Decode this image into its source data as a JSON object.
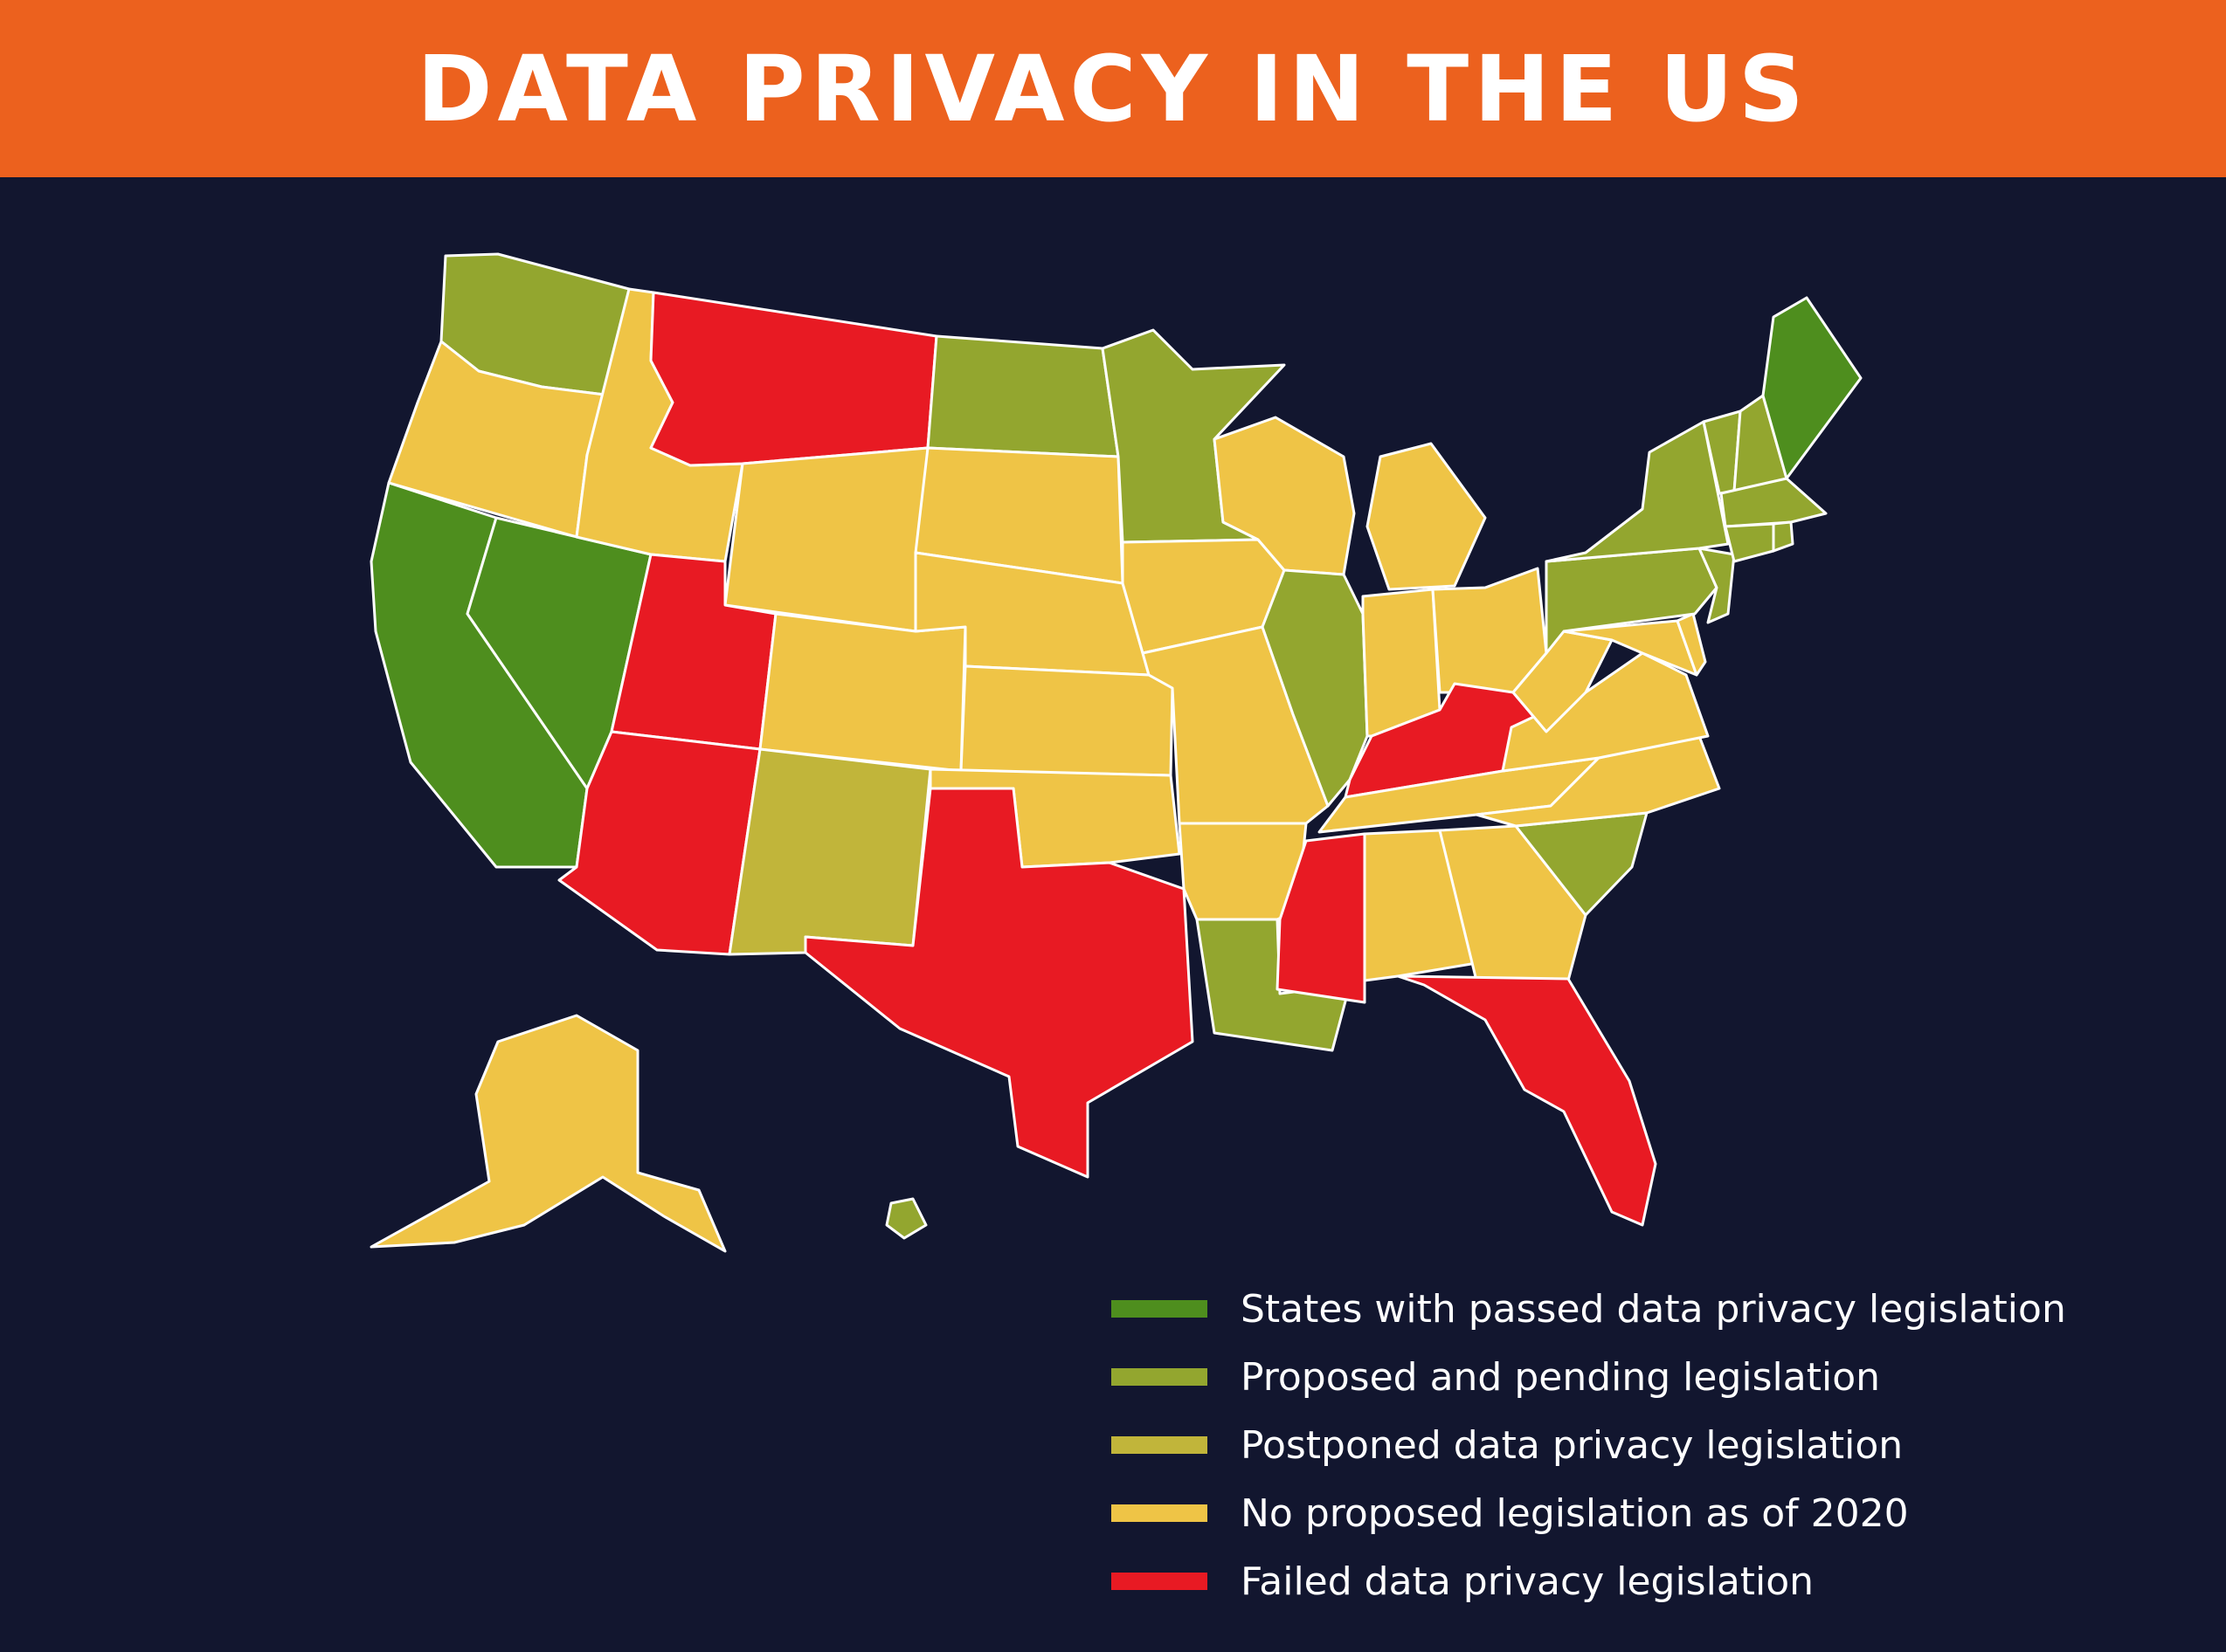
{
  "title": "DATA PRIVACY IN THE US",
  "colors": {
    "header_bg": "#ec611e",
    "background": "#12162f",
    "passed": "#4e8e1e",
    "proposed": "#93a62f",
    "postponed": "#c1b53a",
    "none": "#efc446",
    "failed": "#e81a23"
  },
  "legend": [
    {
      "category": "passed",
      "label": "States with passed data privacy legislation"
    },
    {
      "category": "proposed",
      "label": "Proposed and pending legislation"
    },
    {
      "category": "postponed",
      "label": "Postponed data privacy legislation"
    },
    {
      "category": "none",
      "label": "No proposed legislation as of 2020"
    },
    {
      "category": "failed",
      "label": "Failed data privacy legislation"
    }
  ],
  "states": [
    {
      "name": "Washington",
      "category": "proposed"
    },
    {
      "name": "Oregon",
      "category": "none"
    },
    {
      "name": "California",
      "category": "passed"
    },
    {
      "name": "Nevada",
      "category": "passed"
    },
    {
      "name": "Idaho",
      "category": "none"
    },
    {
      "name": "Montana",
      "category": "failed"
    },
    {
      "name": "Wyoming",
      "category": "none"
    },
    {
      "name": "Utah",
      "category": "failed"
    },
    {
      "name": "Arizona",
      "category": "failed"
    },
    {
      "name": "Colorado",
      "category": "none"
    },
    {
      "name": "New Mexico",
      "category": "postponed"
    },
    {
      "name": "North Dakota",
      "category": "proposed"
    },
    {
      "name": "South Dakota",
      "category": "none"
    },
    {
      "name": "Nebraska",
      "category": "none"
    },
    {
      "name": "Kansas",
      "category": "none"
    },
    {
      "name": "Oklahoma",
      "category": "none"
    },
    {
      "name": "Texas",
      "category": "failed"
    },
    {
      "name": "Minnesota",
      "category": "proposed"
    },
    {
      "name": "Iowa",
      "category": "none"
    },
    {
      "name": "Missouri",
      "category": "none"
    },
    {
      "name": "Arkansas",
      "category": "none"
    },
    {
      "name": "Louisiana",
      "category": "proposed"
    },
    {
      "name": "Wisconsin",
      "category": "none"
    },
    {
      "name": "Illinois",
      "category": "proposed"
    },
    {
      "name": "Michigan",
      "category": "none"
    },
    {
      "name": "Indiana",
      "category": "none"
    },
    {
      "name": "Ohio",
      "category": "none"
    },
    {
      "name": "Kentucky",
      "category": "failed"
    },
    {
      "name": "Tennessee",
      "category": "none"
    },
    {
      "name": "Mississippi",
      "category": "failed"
    },
    {
      "name": "Alabama",
      "category": "none"
    },
    {
      "name": "Georgia",
      "category": "none"
    },
    {
      "name": "Florida",
      "category": "failed"
    },
    {
      "name": "South Carolina",
      "category": "proposed"
    },
    {
      "name": "North Carolina",
      "category": "none"
    },
    {
      "name": "Virginia",
      "category": "none"
    },
    {
      "name": "West Virginia",
      "category": "none"
    },
    {
      "name": "Maryland",
      "category": "none"
    },
    {
      "name": "Delaware",
      "category": "none"
    },
    {
      "name": "Pennsylvania",
      "category": "proposed"
    },
    {
      "name": "New Jersey",
      "category": "proposed"
    },
    {
      "name": "New York",
      "category": "proposed"
    },
    {
      "name": "Connecticut",
      "category": "proposed"
    },
    {
      "name": "Rhode Island",
      "category": "proposed"
    },
    {
      "name": "Massachusetts",
      "category": "proposed"
    },
    {
      "name": "Vermont",
      "category": "proposed"
    },
    {
      "name": "New Hampshire",
      "category": "proposed"
    },
    {
      "name": "Maine",
      "category": "passed"
    },
    {
      "name": "Alaska",
      "category": "none"
    },
    {
      "name": "Hawaii",
      "category": "proposed"
    }
  ]
}
